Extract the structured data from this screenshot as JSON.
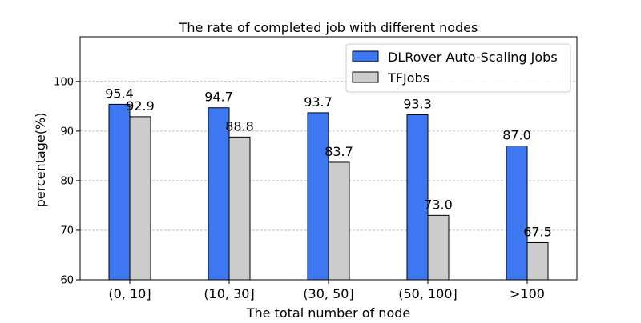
{
  "chart_data": {
    "type": "bar",
    "title": "The rate of completed job with different nodes",
    "xlabel": "The total number of node",
    "ylabel": "percentage(%)",
    "categories": [
      "(0, 10]",
      "(10, 30]",
      "(30, 50]",
      "(50, 100]",
      ">100"
    ],
    "series": [
      {
        "name": "DLRover Auto-Scaling Jobs",
        "values": [
          95.4,
          94.7,
          93.7,
          93.3,
          87.0
        ],
        "labels": [
          "95.4",
          "94.7",
          "93.7",
          "93.3",
          "87.0"
        ],
        "color": "#3d78f2"
      },
      {
        "name": "TFJobs",
        "values": [
          92.9,
          88.8,
          83.7,
          73.0,
          67.5
        ],
        "labels": [
          "92.9",
          "88.8",
          "83.7",
          "73.0",
          "67.5"
        ],
        "color": "#cccccc"
      }
    ],
    "ylim": [
      60,
      109
    ],
    "yticks": [
      60,
      70,
      80,
      90,
      100
    ],
    "grid": "y-dashed",
    "legend": "top-right"
  }
}
